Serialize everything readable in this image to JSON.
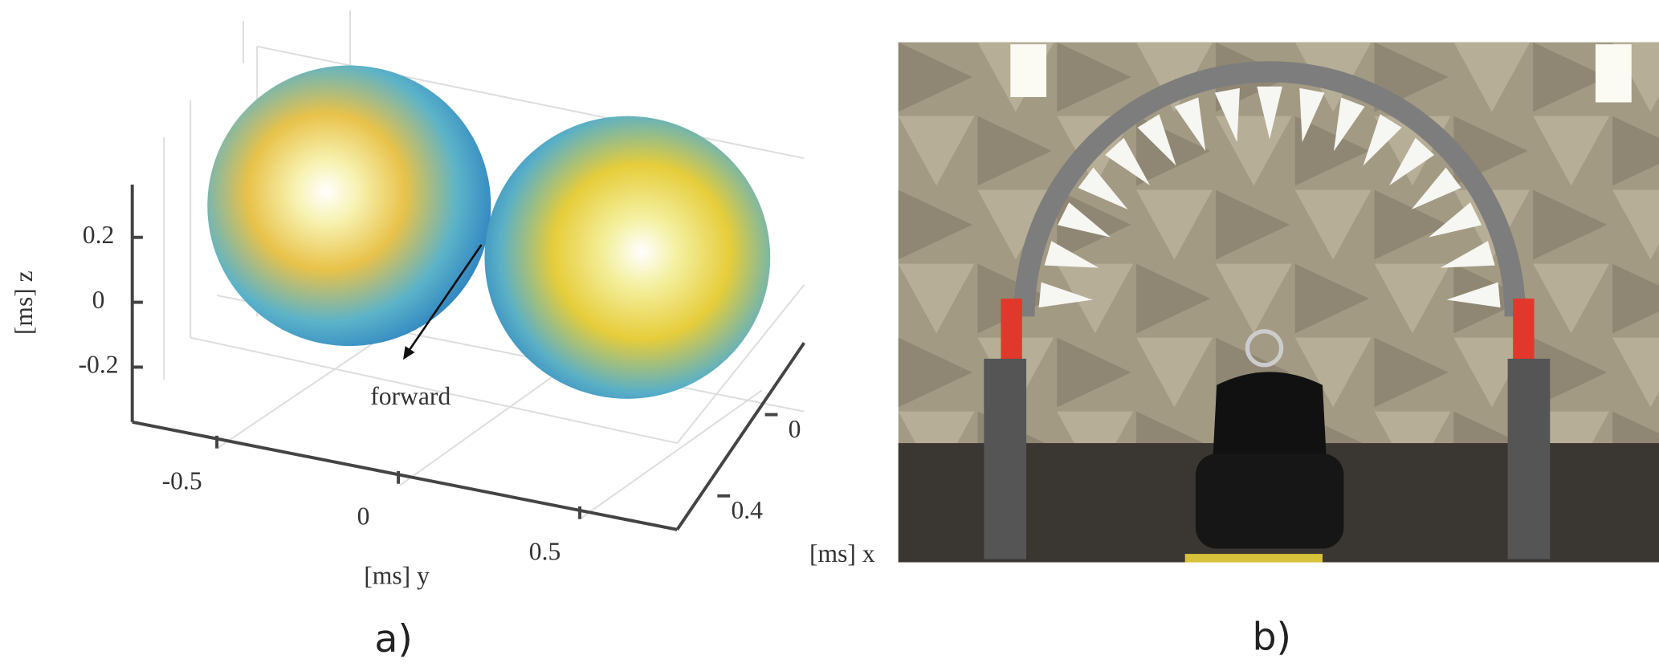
{
  "panel_a": {
    "label": "a)",
    "annotation": "forward",
    "z_axis": {
      "label": "[ms] z",
      "ticks": [
        0.2,
        0,
        -0.2
      ]
    },
    "y_axis": {
      "label": "[ms] y",
      "ticks": [
        -0.5,
        0,
        0.5
      ]
    },
    "x_axis": {
      "label": "[ms] x",
      "ticks": [
        0,
        0.4
      ]
    }
  },
  "panel_b": {
    "label": "b)"
  }
}
